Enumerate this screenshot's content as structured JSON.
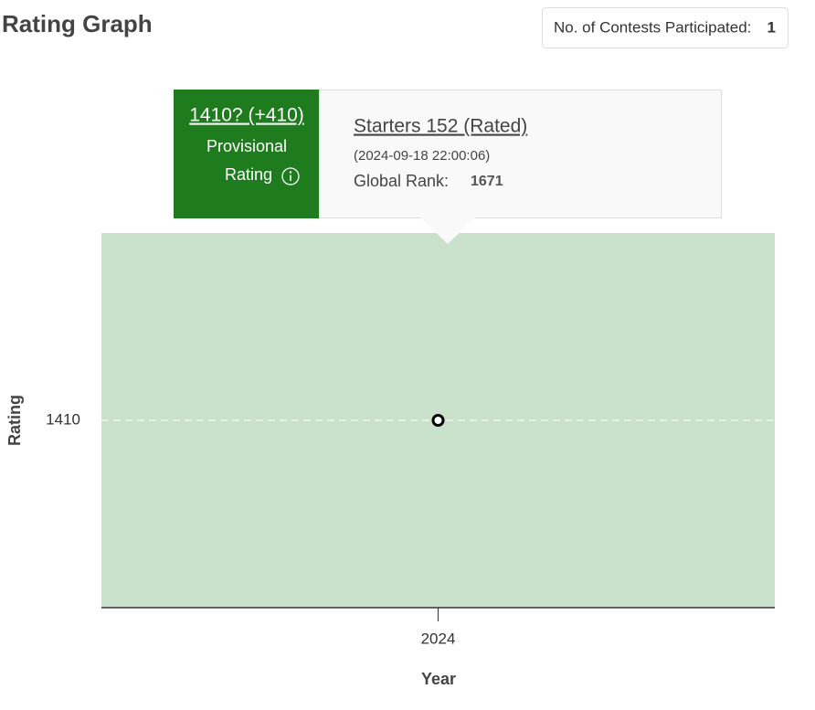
{
  "header": {
    "title": "Rating Graph",
    "badge_label": "No. of Contests Participated:",
    "badge_value": 1
  },
  "chart_data": {
    "type": "line",
    "x_label": "Year",
    "y_label": "Rating",
    "categories": [
      "2024"
    ],
    "values": [
      1410
    ],
    "color": "#000000",
    "area_color": "#c9e1cb",
    "ylim": [
      1400,
      1420
    ],
    "yticks": [
      1410
    ],
    "grid": true
  },
  "tooltip": {
    "rating": "1410? (+410)",
    "status": [
      "Provisional",
      "Rating"
    ],
    "contest": "Starters 152 (Rated)",
    "time": "(2024-09-18 22:00:06)",
    "rank_label": "Global Rank:",
    "rank": 1671
  }
}
